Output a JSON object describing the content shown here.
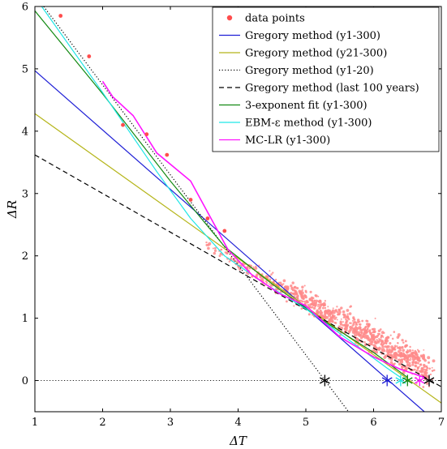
{
  "chart_data": {
    "type": "scatter",
    "xlabel": "ΔT",
    "ylabel": "ΔR",
    "xlim": [
      1,
      7
    ],
    "ylim": [
      -0.5,
      6
    ],
    "xticks": [
      "1",
      "2",
      "3",
      "4",
      "5",
      "6",
      "7"
    ],
    "yticks": [
      "0",
      "1",
      "2",
      "3",
      "4",
      "5",
      "6"
    ],
    "legend_position": "top-right",
    "grid": false,
    "colors": {
      "data_points": "#ff4d4d",
      "scatter_cloud": "#ff8a8a",
      "gregory_y1_300": "#1f1fd6",
      "gregory_y21_300": "#b5b519",
      "gregory_y1_20": "#000000",
      "gregory_last100": "#000000",
      "three_exp": "#138a13",
      "ebm": "#1ee6e6",
      "mclr": "#ff14ff",
      "zero_line": "#000000"
    },
    "legend": [
      {
        "key": "data_points",
        "label": "data points"
      },
      {
        "key": "gregory_y1_300",
        "label": "Gregory method (y1-300)"
      },
      {
        "key": "gregory_y21_300",
        "label": "Gregory method (y21-300)"
      },
      {
        "key": "gregory_y1_20",
        "label": "Gregory method (y1-20)"
      },
      {
        "key": "gregory_last100",
        "label": "Gregory method (last 100 years)"
      },
      {
        "key": "three_exp",
        "label": "3-exponent fit (y1-300)"
      },
      {
        "key": "ebm",
        "label": "EBM-ε method (y1-300)"
      },
      {
        "key": "mclr",
        "label": "MC-LR (y1-300)"
      }
    ],
    "lines": [
      {
        "key": "gregory_y1_300",
        "style": "solid",
        "points": [
          [
            1.0,
            4.97
          ],
          [
            6.75,
            -0.5
          ]
        ]
      },
      {
        "key": "gregory_y21_300",
        "style": "solid",
        "points": [
          [
            1.0,
            4.28
          ],
          [
            7.0,
            -0.36
          ]
        ]
      },
      {
        "key": "gregory_y1_20",
        "style": "dotted",
        "points": [
          [
            1.13,
            6.0
          ],
          [
            5.63,
            -0.5
          ]
        ]
      },
      {
        "key": "gregory_last100",
        "style": "dashed",
        "points": [
          [
            1.0,
            3.62
          ],
          [
            7.0,
            -0.1
          ]
        ]
      },
      {
        "key": "three_exp",
        "style": "solid",
        "points": [
          [
            1.0,
            5.93
          ],
          [
            2.0,
            4.6
          ],
          [
            3.0,
            3.2
          ],
          [
            3.8,
            2.15
          ],
          [
            4.5,
            1.55
          ],
          [
            5.2,
            1.0
          ],
          [
            6.0,
            0.45
          ],
          [
            6.5,
            0.05
          ]
        ]
      },
      {
        "key": "ebm",
        "style": "solid",
        "points": [
          [
            1.1,
            6.0
          ],
          [
            2.0,
            4.62
          ],
          [
            2.8,
            3.35
          ],
          [
            3.3,
            2.6
          ],
          [
            3.8,
            2.0
          ],
          [
            4.4,
            1.55
          ],
          [
            5.0,
            1.15
          ],
          [
            5.7,
            0.6
          ],
          [
            6.2,
            0.2
          ],
          [
            6.4,
            0.05
          ]
        ]
      },
      {
        "key": "mclr",
        "style": "solid",
        "points": [
          [
            2.0,
            4.8
          ],
          [
            2.15,
            4.55
          ],
          [
            2.45,
            4.25
          ],
          [
            2.8,
            3.65
          ],
          [
            3.3,
            3.2
          ],
          [
            3.7,
            2.4
          ],
          [
            3.85,
            2.1
          ],
          [
            4.2,
            1.7
          ],
          [
            4.6,
            1.4
          ],
          [
            5.0,
            1.2
          ],
          [
            5.5,
            0.7
          ],
          [
            6.0,
            0.38
          ],
          [
            6.4,
            0.18
          ],
          [
            6.75,
            0.05
          ]
        ]
      }
    ],
    "equilibrium_points": [
      {
        "x": 5.28,
        "y": 0.0,
        "color": "#000000"
      },
      {
        "x": 6.2,
        "y": 0.0,
        "color": "#1f1fd6"
      },
      {
        "x": 6.4,
        "y": 0.0,
        "color": "#1ee6e6"
      },
      {
        "x": 6.5,
        "y": 0.0,
        "color": "#138a13"
      },
      {
        "x": 6.68,
        "y": 0.0,
        "color": "#ff14ff"
      },
      {
        "x": 6.82,
        "y": 0.0,
        "color": "#000000"
      }
    ],
    "highlighted_points": [
      [
        1.38,
        5.85
      ],
      [
        1.8,
        5.2
      ],
      [
        2.65,
        3.95
      ],
      [
        2.95,
        3.62
      ],
      [
        2.3,
        4.1
      ],
      [
        3.3,
        2.9
      ],
      [
        3.55,
        2.6
      ],
      [
        3.8,
        2.4
      ]
    ],
    "cloud_summary": {
      "x_range": [
        3.5,
        6.85
      ],
      "trend_start": [
        3.5,
        2.2
      ],
      "trend_end": [
        6.8,
        0.05
      ],
      "spread": 0.25
    }
  }
}
